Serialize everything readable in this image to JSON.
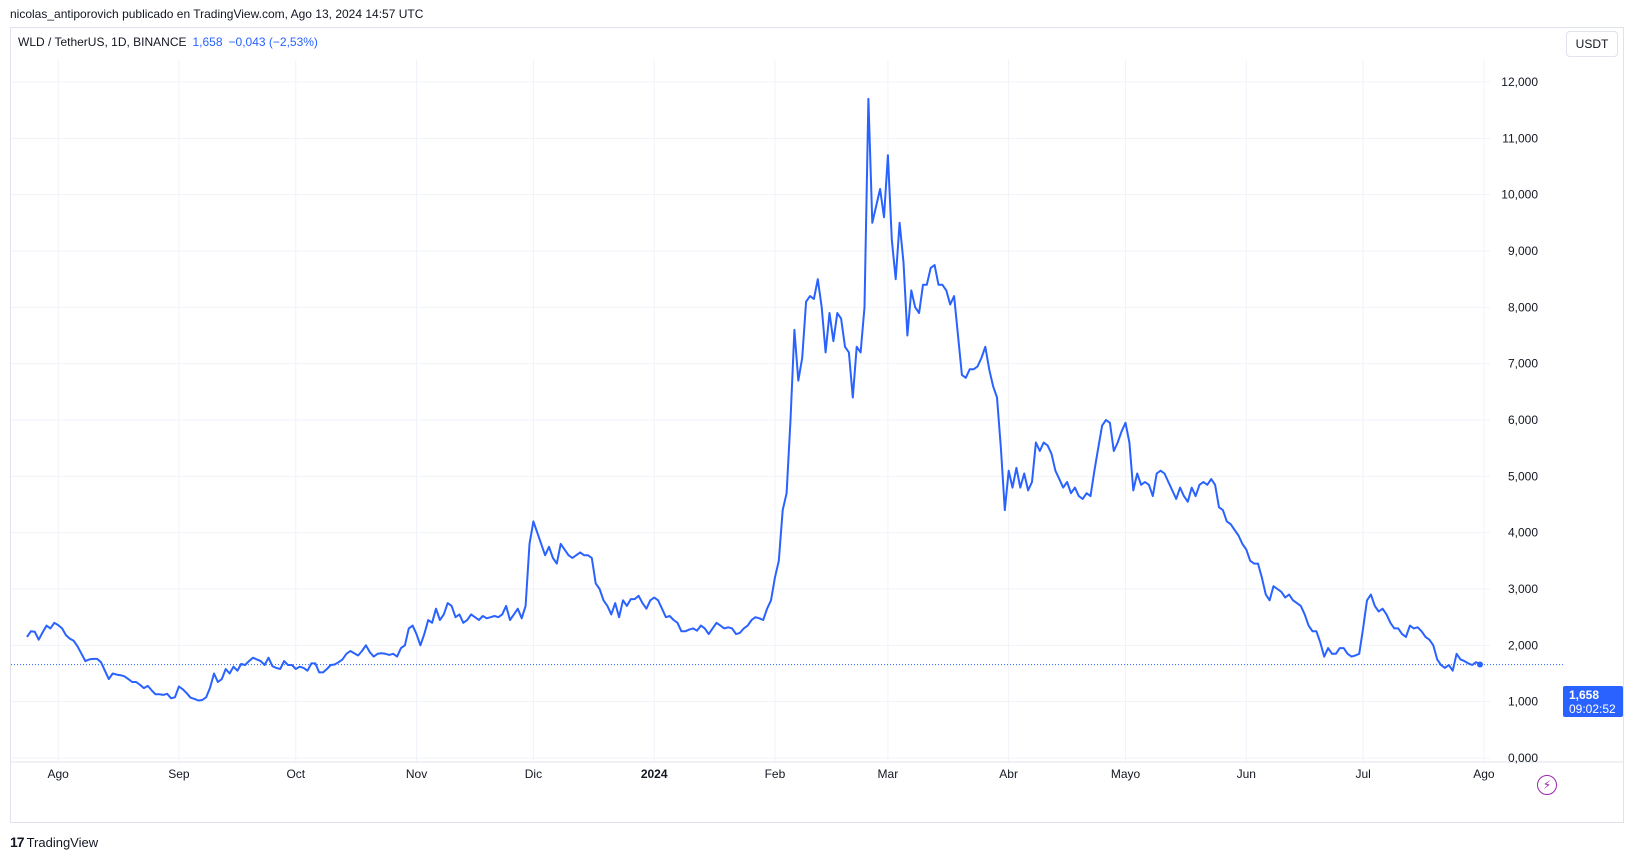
{
  "header": {
    "publisher": "nicolas_antiporovich publicado en TradingView.com, Ago 13, 2024 14:57 UTC"
  },
  "legend": {
    "symbol": "WLD / TetherUS, 1D, BINANCE",
    "value": "1,658",
    "change": "−0,043 (−2,53%)"
  },
  "currency_button": "USDT",
  "footer": {
    "logo_mark": "17",
    "logo_text": "TradingView"
  },
  "price_label": {
    "value": "1,658",
    "countdown": "09:02:52"
  },
  "colors": {
    "line": "#2962ff",
    "grid": "#f0f3fa",
    "text": "#131722",
    "bolt": "#9c27b0"
  },
  "chart_data": {
    "type": "line",
    "series": [
      {
        "values": [
          2.15,
          2.25,
          2.24,
          2.1,
          2.23,
          2.35,
          2.3,
          2.4,
          2.36,
          2.3,
          2.18,
          2.12,
          2.08,
          1.98,
          1.85,
          1.72,
          1.75,
          1.76,
          1.76,
          1.7,
          1.55,
          1.4,
          1.5,
          1.48,
          1.47,
          1.45,
          1.4,
          1.35,
          1.35,
          1.3,
          1.24,
          1.28,
          1.2,
          1.13,
          1.13,
          1.12,
          1.14,
          1.06,
          1.08,
          1.27,
          1.22,
          1.15,
          1.07,
          1.05,
          1.02,
          1.03,
          1.08,
          1.25,
          1.5,
          1.35,
          1.4,
          1.58,
          1.5,
          1.62,
          1.55,
          1.67,
          1.65,
          1.72,
          1.78,
          1.75,
          1.72,
          1.65,
          1.78,
          1.63,
          1.6,
          1.58,
          1.72,
          1.65,
          1.65,
          1.58,
          1.62,
          1.6,
          1.55,
          1.68,
          1.68,
          1.52,
          1.52,
          1.58,
          1.65,
          1.66,
          1.7,
          1.75,
          1.85,
          1.9,
          1.86,
          1.82,
          1.9,
          2.0,
          1.88,
          1.8,
          1.85,
          1.86,
          1.85,
          1.83,
          1.85,
          1.8,
          1.95,
          2.0,
          2.3,
          2.35,
          2.2,
          2.0,
          2.2,
          2.45,
          2.4,
          2.65,
          2.45,
          2.55,
          2.75,
          2.7,
          2.5,
          2.55,
          2.4,
          2.45,
          2.55,
          2.5,
          2.45,
          2.52,
          2.48,
          2.5,
          2.52,
          2.5,
          2.55,
          2.7,
          2.45,
          2.55,
          2.65,
          2.48,
          2.7,
          3.8,
          4.2,
          4.0,
          3.8,
          3.6,
          3.75,
          3.55,
          3.45,
          3.8,
          3.7,
          3.6,
          3.55,
          3.6,
          3.65,
          3.6,
          3.6,
          3.55,
          3.1,
          3.0,
          2.8,
          2.7,
          2.55,
          2.75,
          2.5,
          2.8,
          2.7,
          2.82,
          2.82,
          2.88,
          2.75,
          2.65,
          2.8,
          2.85,
          2.8,
          2.65,
          2.5,
          2.52,
          2.45,
          2.4,
          2.25,
          2.25,
          2.28,
          2.3,
          2.26,
          2.35,
          2.3,
          2.2,
          2.3,
          2.4,
          2.35,
          2.3,
          2.32,
          2.3,
          2.2,
          2.22,
          2.3,
          2.35,
          2.45,
          2.5,
          2.48,
          2.45,
          2.65,
          2.8,
          3.2,
          3.5,
          4.4,
          4.7,
          6.0,
          7.6,
          6.7,
          7.1,
          8.1,
          8.2,
          8.15,
          8.5,
          8.0,
          7.2,
          7.9,
          7.4,
          7.9,
          7.8,
          7.3,
          7.2,
          6.4,
          7.3,
          7.2,
          8.0,
          11.7,
          9.5,
          9.8,
          10.1,
          9.6,
          10.7,
          9.2,
          8.5,
          9.5,
          8.8,
          7.5,
          8.3,
          8.0,
          7.9,
          8.4,
          8.4,
          8.7,
          8.75,
          8.4,
          8.4,
          8.3,
          8.05,
          8.2,
          7.5,
          6.8,
          6.75,
          6.9,
          6.9,
          6.95,
          7.1,
          7.3,
          6.9,
          6.6,
          6.4,
          5.5,
          4.4,
          5.1,
          4.8,
          5.15,
          4.8,
          5.05,
          4.75,
          4.9,
          5.6,
          5.45,
          5.6,
          5.55,
          5.4,
          5.1,
          4.95,
          4.8,
          4.9,
          4.7,
          4.8,
          4.65,
          4.6,
          4.7,
          4.65,
          5.1,
          5.5,
          5.9,
          6.0,
          5.95,
          5.45,
          5.6,
          5.8,
          5.95,
          5.6,
          4.75,
          5.05,
          4.85,
          4.9,
          4.85,
          4.65,
          5.05,
          5.1,
          5.05,
          4.9,
          4.75,
          4.6,
          4.8,
          4.65,
          4.55,
          4.8,
          4.65,
          4.85,
          4.9,
          4.85,
          4.95,
          4.85,
          4.45,
          4.4,
          4.2,
          4.15,
          4.05,
          3.95,
          3.8,
          3.7,
          3.5,
          3.45,
          3.45,
          3.2,
          2.9,
          2.8,
          3.05,
          3.0,
          2.95,
          2.85,
          2.9,
          2.8,
          2.75,
          2.7,
          2.55,
          2.35,
          2.25,
          2.25,
          2.05,
          1.8,
          1.95,
          1.85,
          1.85,
          1.95,
          1.95,
          1.85,
          1.8,
          1.82,
          1.85,
          2.3,
          2.8,
          2.9,
          2.7,
          2.6,
          2.65,
          2.55,
          2.4,
          2.3,
          2.3,
          2.2,
          2.15,
          2.35,
          2.3,
          2.32,
          2.25,
          2.15,
          2.1,
          2.0,
          1.75,
          1.65,
          1.6,
          1.65,
          1.55,
          1.85,
          1.75,
          1.72,
          1.68,
          1.65,
          1.7,
          1.66
        ]
      }
    ],
    "y_ticks": [
      "0,000",
      "1,000",
      "2,000",
      "3,000",
      "4,000",
      "5,000",
      "6,000",
      "7,000",
      "8,000",
      "9,000",
      "10,000",
      "11,000",
      "12,000"
    ],
    "x_tick_labels": [
      "Ago",
      "Sep",
      "Oct",
      "Nov",
      "Dic",
      "2024",
      "Feb",
      "Mar",
      "Abr",
      "Mayo",
      "Jun",
      "Jul",
      "Ago"
    ],
    "x_tick_index": [
      8,
      39,
      69,
      100,
      130,
      161,
      192,
      221,
      252,
      282,
      313,
      343,
      374
    ],
    "bold_tick": "2024",
    "last_value": 1.658,
    "ylim": [
      0,
      12
    ],
    "grid": true
  }
}
